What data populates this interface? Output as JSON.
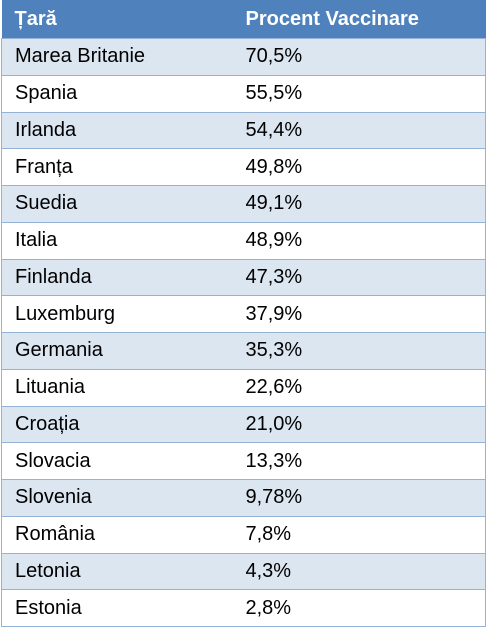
{
  "table": {
    "header": [
      "Țară",
      "Procent Vaccinare"
    ],
    "rows": [
      [
        "Marea Britanie",
        "70,5%"
      ],
      [
        "Spania",
        "55,5%"
      ],
      [
        "Irlanda",
        "54,4%"
      ],
      [
        "Franța",
        "49,8%"
      ],
      [
        "Suedia",
        "49,1%"
      ],
      [
        "Italia",
        "48,9%"
      ],
      [
        "Finlanda",
        "47,3%"
      ],
      [
        "Luxemburg",
        "37,9%"
      ],
      [
        "Germania",
        "35,3%"
      ],
      [
        "Lituania",
        "22,6%"
      ],
      [
        "Croația",
        "21,0%"
      ],
      [
        "Slovacia",
        "13,3%"
      ],
      [
        "Slovenia",
        "9,78%"
      ],
      [
        "România",
        "7,8%"
      ],
      [
        "Letonia",
        "4,3%"
      ],
      [
        "Estonia",
        "2,8%"
      ]
    ]
  }
}
